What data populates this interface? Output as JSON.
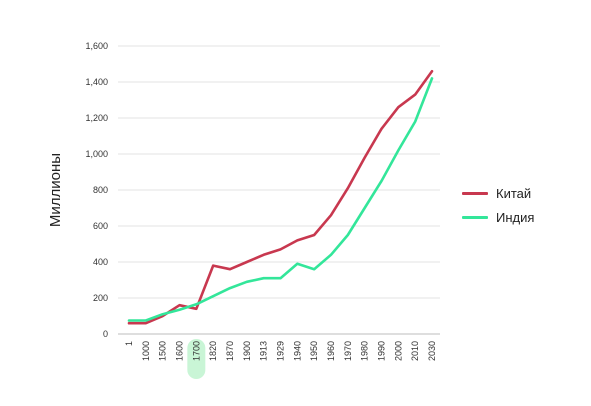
{
  "chart_data": {
    "type": "line",
    "title": "",
    "xlabel": "",
    "ylabel": "Миллионы",
    "categories": [
      "1",
      "1000",
      "1500",
      "1600",
      "1700",
      "1820",
      "1870",
      "1900",
      "1913",
      "1929",
      "1940",
      "1950",
      "1960",
      "1970",
      "1980",
      "1990",
      "2000",
      "2010",
      "2030"
    ],
    "highlighted_category": "1700",
    "ylim": [
      0,
      1600
    ],
    "yticks": [
      "0",
      "200",
      "400",
      "600",
      "800",
      "1,000",
      "1,200",
      "1,400",
      "1,600"
    ],
    "grid": "horizontal",
    "legend_position": "right",
    "series": [
      {
        "name": "Китай",
        "color": "#c8384f",
        "values": [
          60,
          60,
          100,
          160,
          140,
          380,
          360,
          400,
          440,
          470,
          520,
          550,
          660,
          810,
          980,
          1140,
          1260,
          1330,
          1460
        ]
      },
      {
        "name": "Индия",
        "color": "#33e69a",
        "values": [
          75,
          75,
          110,
          135,
          165,
          210,
          255,
          290,
          310,
          310,
          390,
          360,
          440,
          550,
          700,
          850,
          1020,
          1180,
          1420
        ]
      }
    ],
    "highlight_color": "#c9f5d6"
  }
}
